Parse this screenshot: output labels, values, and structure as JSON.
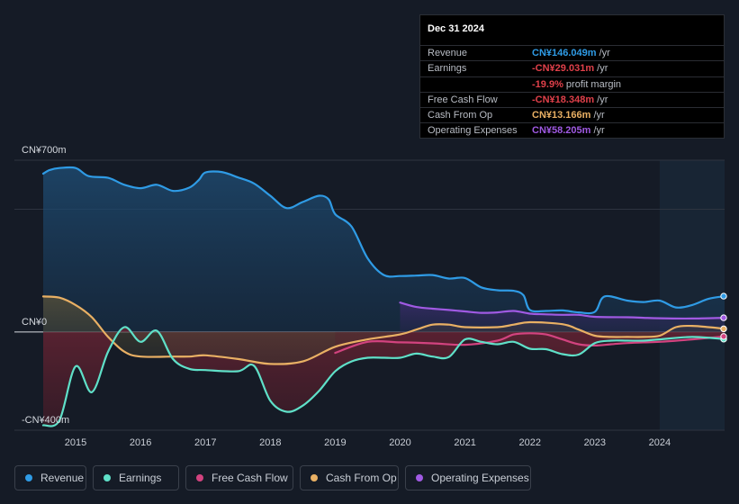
{
  "tooltip": {
    "date": "Dec 31 2024",
    "rows": [
      {
        "label": "Revenue",
        "value": "CN¥146.049m",
        "unit": "/yr",
        "color": "#2f9be5"
      },
      {
        "label": "Earnings",
        "value": "-CN¥29.031m",
        "unit": "/yr",
        "color": "#e0404a"
      },
      {
        "label": "",
        "value": "-19.9%",
        "unit": "profit margin",
        "color": "#e0404a"
      },
      {
        "label": "Free Cash Flow",
        "value": "-CN¥18.348m",
        "unit": "/yr",
        "color": "#e0404a"
      },
      {
        "label": "Cash From Op",
        "value": "CN¥13.166m",
        "unit": "/yr",
        "color": "#e9b064"
      },
      {
        "label": "Operating Expenses",
        "value": "CN¥58.205m",
        "unit": "/yr",
        "color": "#a05ae3"
      }
    ]
  },
  "legend": [
    {
      "label": "Revenue",
      "color": "#2f9be5"
    },
    {
      "label": "Earnings",
      "color": "#5fe0c8"
    },
    {
      "label": "Free Cash Flow",
      "color": "#d2437f"
    },
    {
      "label": "Cash From Op",
      "color": "#e9b064"
    },
    {
      "label": "Operating Expenses",
      "color": "#a05ae3"
    }
  ],
  "chart_data": {
    "type": "area",
    "title": "",
    "xlabel": "",
    "ylabel": "",
    "ylim": [
      -400,
      700
    ],
    "xlim": [
      2014.5,
      2025.0
    ],
    "y_tick_labels": [
      {
        "value": 700,
        "label": "CN¥700m"
      },
      {
        "value": 0,
        "label": "CN¥0"
      },
      {
        "value": -400,
        "label": "-CN¥400m"
      }
    ],
    "x_ticks": [
      2015,
      2016,
      2017,
      2018,
      2019,
      2020,
      2021,
      2022,
      2023,
      2024
    ],
    "x_tick_labels": [
      "2015",
      "2016",
      "2017",
      "2018",
      "2019",
      "2020",
      "2021",
      "2022",
      "2023",
      "2024"
    ],
    "highlight_start": 2024.0,
    "series": [
      {
        "name": "Revenue",
        "color": "#2f9be5",
        "points": [
          [
            2014.5,
            645
          ],
          [
            2014.6,
            660
          ],
          [
            2014.75,
            668
          ],
          [
            2015.0,
            668
          ],
          [
            2015.2,
            635
          ],
          [
            2015.5,
            628
          ],
          [
            2015.75,
            600
          ],
          [
            2016.0,
            586
          ],
          [
            2016.25,
            600
          ],
          [
            2016.5,
            575
          ],
          [
            2016.75,
            588
          ],
          [
            2016.9,
            620
          ],
          [
            2017.0,
            650
          ],
          [
            2017.25,
            652
          ],
          [
            2017.5,
            630
          ],
          [
            2017.75,
            605
          ],
          [
            2018.0,
            555
          ],
          [
            2018.25,
            505
          ],
          [
            2018.5,
            530
          ],
          [
            2018.75,
            555
          ],
          [
            2018.9,
            540
          ],
          [
            2019.0,
            480
          ],
          [
            2019.25,
            430
          ],
          [
            2019.5,
            300
          ],
          [
            2019.75,
            232
          ],
          [
            2020.0,
            228
          ],
          [
            2020.25,
            230
          ],
          [
            2020.5,
            232
          ],
          [
            2020.75,
            218
          ],
          [
            2021.0,
            220
          ],
          [
            2021.25,
            182
          ],
          [
            2021.5,
            170
          ],
          [
            2021.75,
            168
          ],
          [
            2021.9,
            150
          ],
          [
            2022.0,
            90
          ],
          [
            2022.25,
            86
          ],
          [
            2022.5,
            88
          ],
          [
            2022.75,
            80
          ],
          [
            2023.0,
            82
          ],
          [
            2023.15,
            145
          ],
          [
            2023.5,
            128
          ],
          [
            2023.75,
            122
          ],
          [
            2024.0,
            128
          ],
          [
            2024.25,
            100
          ],
          [
            2024.5,
            110
          ],
          [
            2024.75,
            135
          ],
          [
            2025.0,
            146
          ]
        ]
      },
      {
        "name": "Earnings",
        "color": "#5fe0c8",
        "points": [
          [
            2014.5,
            -380
          ],
          [
            2014.75,
            -360
          ],
          [
            2015.0,
            -140
          ],
          [
            2015.25,
            -245
          ],
          [
            2015.5,
            -80
          ],
          [
            2015.75,
            20
          ],
          [
            2016.0,
            -40
          ],
          [
            2016.25,
            5
          ],
          [
            2016.5,
            -110
          ],
          [
            2016.75,
            -150
          ],
          [
            2017.0,
            -155
          ],
          [
            2017.5,
            -160
          ],
          [
            2017.75,
            -138
          ],
          [
            2018.0,
            -280
          ],
          [
            2018.25,
            -325
          ],
          [
            2018.5,
            -300
          ],
          [
            2018.75,
            -240
          ],
          [
            2019.0,
            -160
          ],
          [
            2019.25,
            -120
          ],
          [
            2019.5,
            -105
          ],
          [
            2019.75,
            -105
          ],
          [
            2020.0,
            -105
          ],
          [
            2020.25,
            -88
          ],
          [
            2020.5,
            -100
          ],
          [
            2020.75,
            -102
          ],
          [
            2021.0,
            -30
          ],
          [
            2021.25,
            -40
          ],
          [
            2021.5,
            -50
          ],
          [
            2021.75,
            -40
          ],
          [
            2022.0,
            -68
          ],
          [
            2022.25,
            -70
          ],
          [
            2022.5,
            -90
          ],
          [
            2022.75,
            -92
          ],
          [
            2023.0,
            -45
          ],
          [
            2023.25,
            -35
          ],
          [
            2023.5,
            -35
          ],
          [
            2023.75,
            -35
          ],
          [
            2024.0,
            -30
          ],
          [
            2024.5,
            -20
          ],
          [
            2025.0,
            -29
          ]
        ]
      },
      {
        "name": "Free Cash Flow",
        "color": "#d2437f",
        "points": [
          [
            2019.0,
            -85
          ],
          [
            2019.5,
            -40
          ],
          [
            2020.0,
            -42
          ],
          [
            2020.5,
            -46
          ],
          [
            2021.0,
            -52
          ],
          [
            2021.5,
            -35
          ],
          [
            2021.75,
            -10
          ],
          [
            2022.0,
            -5
          ],
          [
            2022.25,
            -10
          ],
          [
            2022.5,
            -30
          ],
          [
            2022.75,
            -50
          ],
          [
            2023.0,
            -55
          ],
          [
            2023.25,
            -50
          ],
          [
            2023.5,
            -45
          ],
          [
            2023.75,
            -42
          ],
          [
            2024.0,
            -40
          ],
          [
            2024.5,
            -30
          ],
          [
            2025.0,
            -18
          ]
        ]
      },
      {
        "name": "Cash From Op",
        "color": "#e9b064",
        "points": [
          [
            2014.5,
            145
          ],
          [
            2014.75,
            140
          ],
          [
            2015.0,
            110
          ],
          [
            2015.25,
            60
          ],
          [
            2015.5,
            -20
          ],
          [
            2015.75,
            -80
          ],
          [
            2016.0,
            -100
          ],
          [
            2016.5,
            -100
          ],
          [
            2016.75,
            -100
          ],
          [
            2017.0,
            -95
          ],
          [
            2017.5,
            -110
          ],
          [
            2018.0,
            -130
          ],
          [
            2018.5,
            -120
          ],
          [
            2019.0,
            -60
          ],
          [
            2019.5,
            -30
          ],
          [
            2020.0,
            -10
          ],
          [
            2020.25,
            10
          ],
          [
            2020.5,
            30
          ],
          [
            2020.75,
            30
          ],
          [
            2021.0,
            20
          ],
          [
            2021.5,
            20
          ],
          [
            2021.75,
            30
          ],
          [
            2022.0,
            40
          ],
          [
            2022.5,
            32
          ],
          [
            2022.75,
            10
          ],
          [
            2023.0,
            -15
          ],
          [
            2023.25,
            -20
          ],
          [
            2023.5,
            -20
          ],
          [
            2023.75,
            -20
          ],
          [
            2024.0,
            -15
          ],
          [
            2024.25,
            20
          ],
          [
            2024.5,
            25
          ],
          [
            2024.75,
            20
          ],
          [
            2025.0,
            13
          ]
        ]
      },
      {
        "name": "Operating Expenses",
        "color": "#a05ae3",
        "points": [
          [
            2020.0,
            120
          ],
          [
            2020.25,
            102
          ],
          [
            2020.5,
            95
          ],
          [
            2020.75,
            90
          ],
          [
            2021.0,
            84
          ],
          [
            2021.25,
            78
          ],
          [
            2021.5,
            80
          ],
          [
            2021.75,
            86
          ],
          [
            2022.0,
            75
          ],
          [
            2022.25,
            72
          ],
          [
            2022.5,
            70
          ],
          [
            2022.75,
            70
          ],
          [
            2023.0,
            62
          ],
          [
            2023.5,
            60
          ],
          [
            2023.75,
            58
          ],
          [
            2024.0,
            56
          ],
          [
            2024.5,
            55
          ],
          [
            2025.0,
            58
          ]
        ]
      }
    ]
  }
}
